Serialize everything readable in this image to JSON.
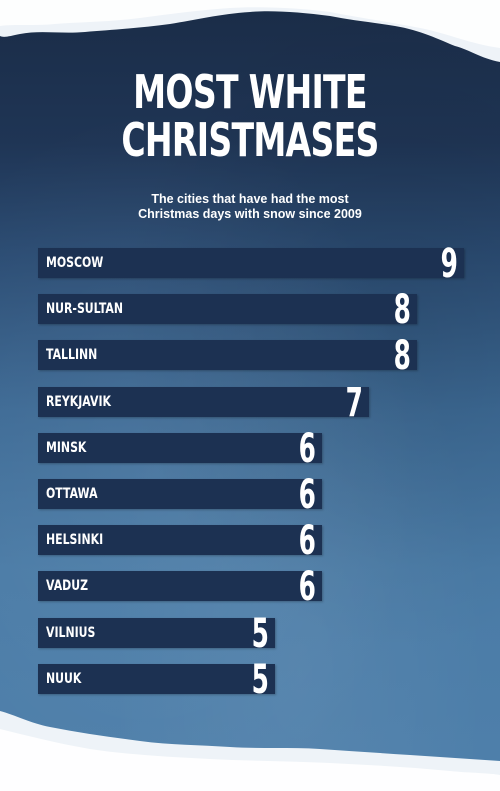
{
  "title_line1": "MOST WHITE",
  "title_line2": "CHRISTMASES",
  "subtitle_line1": "The cities that have had the most",
  "subtitle_line2": "Christmas days with snow since 2009",
  "colors": {
    "bar": "#1c3152",
    "text": "#ffffff",
    "snow": "#eef3f8"
  },
  "chart_data": {
    "type": "bar",
    "orientation": "horizontal",
    "title": "MOST WHITE CHRISTMASES",
    "subtitle": "The cities that have had the most Christmas days with snow since 2009",
    "categories": [
      "MOSCOW",
      "NUR-SULTAN",
      "TALLINN",
      "REYKJAVIK",
      "MINSK",
      "OTTAWA",
      "HELSINKI",
      "VADUZ",
      "VILNIUS",
      "NUUK"
    ],
    "values": [
      9,
      8,
      8,
      7,
      6,
      6,
      6,
      6,
      5,
      5
    ],
    "xlim": [
      0,
      9
    ],
    "grid": false,
    "legend": "none",
    "data_labels": true
  }
}
